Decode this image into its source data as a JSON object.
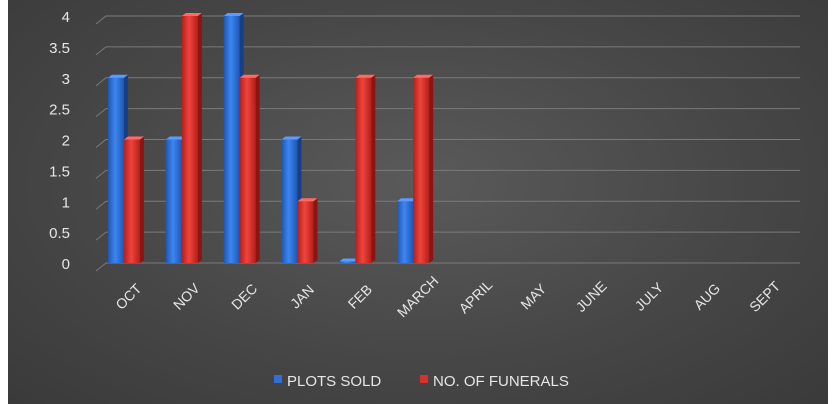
{
  "chart_data": {
    "type": "bar",
    "title": "",
    "xlabel": "",
    "ylabel": "",
    "categories": [
      "OCT",
      "NOV",
      "DEC",
      "JAN",
      "FEB",
      "MARCH",
      "APRIL",
      "MAY",
      "JUNE",
      "JULY",
      "AUG",
      "SEPT"
    ],
    "series": [
      {
        "name": "PLOTS SOLD",
        "color": "#2f6fd6",
        "values": [
          3,
          2,
          4,
          2,
          0,
          1,
          null,
          null,
          null,
          null,
          null,
          null
        ]
      },
      {
        "name": "NO. OF FUNERALS",
        "color": "#d9302b",
        "values": [
          2,
          4,
          3,
          1,
          3,
          3,
          null,
          null,
          null,
          null,
          null,
          null
        ]
      }
    ],
    "ylim": [
      0,
      4
    ],
    "yticks": [
      "0",
      "0.5",
      "1",
      "1.5",
      "2",
      "2.5",
      "3",
      "3.5",
      "4"
    ],
    "grid": true,
    "legend_position": "bottom",
    "style": "3d-column",
    "background": "#474747"
  }
}
